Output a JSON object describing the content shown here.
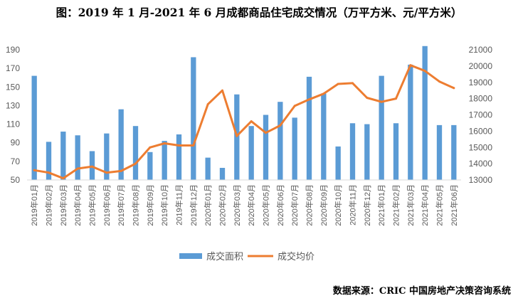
{
  "chart_data": {
    "type": "bar+line",
    "title": "图：2019 年 1 月-2021 年 6 月成都商品住宅成交情况（万平方米、元/平方米）",
    "categories": [
      "2019年01月",
      "2019年02月",
      "2019年03月",
      "2019年04月",
      "2019年05月",
      "2019年06月",
      "2019年07月",
      "2019年08月",
      "2019年09月",
      "2019年10月",
      "2019年11月",
      "2019年12月",
      "2020年01月",
      "2020年02月",
      "2020年03月",
      "2020年04月",
      "2020年05月",
      "2020年06月",
      "2020年07月",
      "2020年08月",
      "2020年09月",
      "2020年10月",
      "2020年11月",
      "2020年12月",
      "2021年01月",
      "2021年02月",
      "2021年03月",
      "2021年04月",
      "2021年05月",
      "2021年06月"
    ],
    "series": [
      {
        "name": "成交面积",
        "type": "bar",
        "axis": "left",
        "color": "#5B9BD5",
        "values": [
          162,
          91,
          102,
          98,
          81,
          100,
          126,
          108,
          80,
          92,
          99,
          182,
          74,
          63,
          142,
          108,
          120,
          134,
          117,
          161,
          143,
          86,
          111,
          110,
          162,
          111,
          174,
          194,
          109,
          109
        ]
      },
      {
        "name": "成交均价",
        "type": "line",
        "axis": "right",
        "color": "#ED7D31",
        "values": [
          13600,
          13450,
          13100,
          13700,
          13820,
          13450,
          13550,
          14000,
          15000,
          15250,
          15120,
          15120,
          17650,
          18500,
          15700,
          16600,
          15900,
          16350,
          17550,
          17950,
          18300,
          18900,
          18950,
          18050,
          17800,
          18000,
          20050,
          19700,
          19050,
          18650
        ]
      }
    ],
    "y_left": {
      "min": 50,
      "max": 190,
      "ticks": [
        50,
        70,
        90,
        110,
        130,
        150,
        170,
        190
      ]
    },
    "y_right": {
      "min": 13000,
      "max": 21000,
      "ticks": [
        13000,
        14000,
        15000,
        16000,
        17000,
        18000,
        19000,
        20000,
        21000
      ]
    },
    "legend_position": "bottom",
    "grid": false
  },
  "source": "数据来源：CRIC 中国房地产决策咨询系统"
}
